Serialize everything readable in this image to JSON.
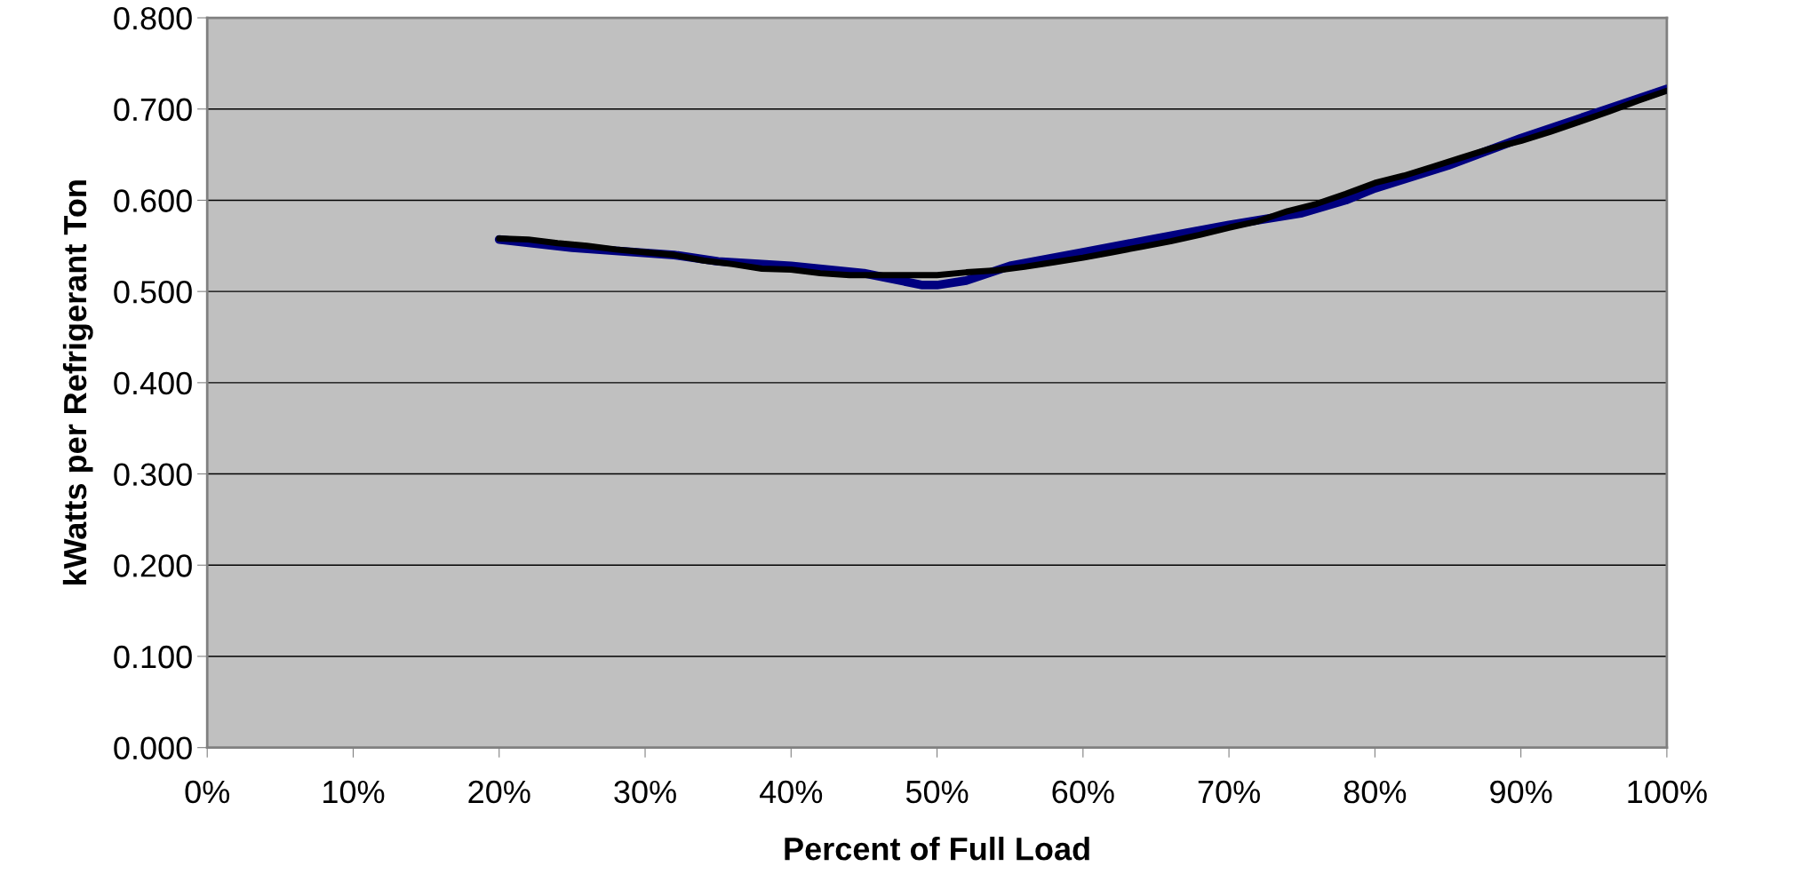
{
  "chart_data": {
    "type": "line",
    "xlabel": "Percent of Full Load",
    "ylabel": "kWatts per Refrigerant Ton",
    "xlim": [
      0,
      100
    ],
    "xticks": [
      {
        "value": 0,
        "label": "0%"
      },
      {
        "value": 10,
        "label": "10%"
      },
      {
        "value": 20,
        "label": "20%"
      },
      {
        "value": 30,
        "label": "30%"
      },
      {
        "value": 40,
        "label": "40%"
      },
      {
        "value": 50,
        "label": "50%"
      },
      {
        "value": 60,
        "label": "60%"
      },
      {
        "value": 70,
        "label": "70%"
      },
      {
        "value": 80,
        "label": "80%"
      },
      {
        "value": 90,
        "label": "90%"
      },
      {
        "value": 100,
        "label": "100%"
      }
    ],
    "ylim": [
      0,
      0.8
    ],
    "yticks": [
      {
        "value": 0,
        "label": "0.000"
      },
      {
        "value": 0.1,
        "label": "0.100"
      },
      {
        "value": 0.2,
        "label": "0.200"
      },
      {
        "value": 0.3,
        "label": "0.300"
      },
      {
        "value": 0.4,
        "label": "0.400"
      },
      {
        "value": 0.5,
        "label": "0.500"
      },
      {
        "value": 0.6,
        "label": "0.600"
      },
      {
        "value": 0.7,
        "label": "0.700"
      },
      {
        "value": 0.8,
        "label": "0.800"
      }
    ],
    "grid": "y",
    "legend": false,
    "marker": "none",
    "line_style": "solid",
    "series": [
      {
        "color": "#000080",
        "x": [
          20,
          25,
          32,
          35,
          40,
          45,
          49,
          50,
          52,
          55,
          60,
          65,
          70,
          75,
          78,
          80,
          85,
          90,
          95,
          100
        ],
        "values": [
          0.557,
          0.548,
          0.54,
          0.533,
          0.528,
          0.52,
          0.507,
          0.507,
          0.512,
          0.528,
          0.543,
          0.558,
          0.573,
          0.586,
          0.6,
          0.613,
          0.638,
          0.668,
          0.695,
          0.722
        ]
      },
      {
        "color": "#000000",
        "x": [
          20,
          22,
          24,
          26,
          28,
          30,
          32,
          34,
          36,
          38,
          40,
          42,
          44,
          46,
          48,
          50,
          52,
          54,
          56,
          58,
          60,
          62,
          64,
          66,
          68,
          70,
          72,
          74,
          76,
          78,
          80,
          82,
          84,
          86,
          88,
          90,
          92,
          94,
          96,
          98,
          100
        ],
        "values": [
          0.558,
          0.557,
          0.553,
          0.55,
          0.546,
          0.543,
          0.54,
          0.534,
          0.53,
          0.525,
          0.524,
          0.52,
          0.518,
          0.518,
          0.518,
          0.518,
          0.521,
          0.523,
          0.527,
          0.532,
          0.537,
          0.543,
          0.549,
          0.555,
          0.562,
          0.57,
          0.577,
          0.588,
          0.596,
          0.607,
          0.619,
          0.627,
          0.637,
          0.647,
          0.657,
          0.665,
          0.675,
          0.686,
          0.697,
          0.709,
          0.72
        ]
      }
    ]
  }
}
